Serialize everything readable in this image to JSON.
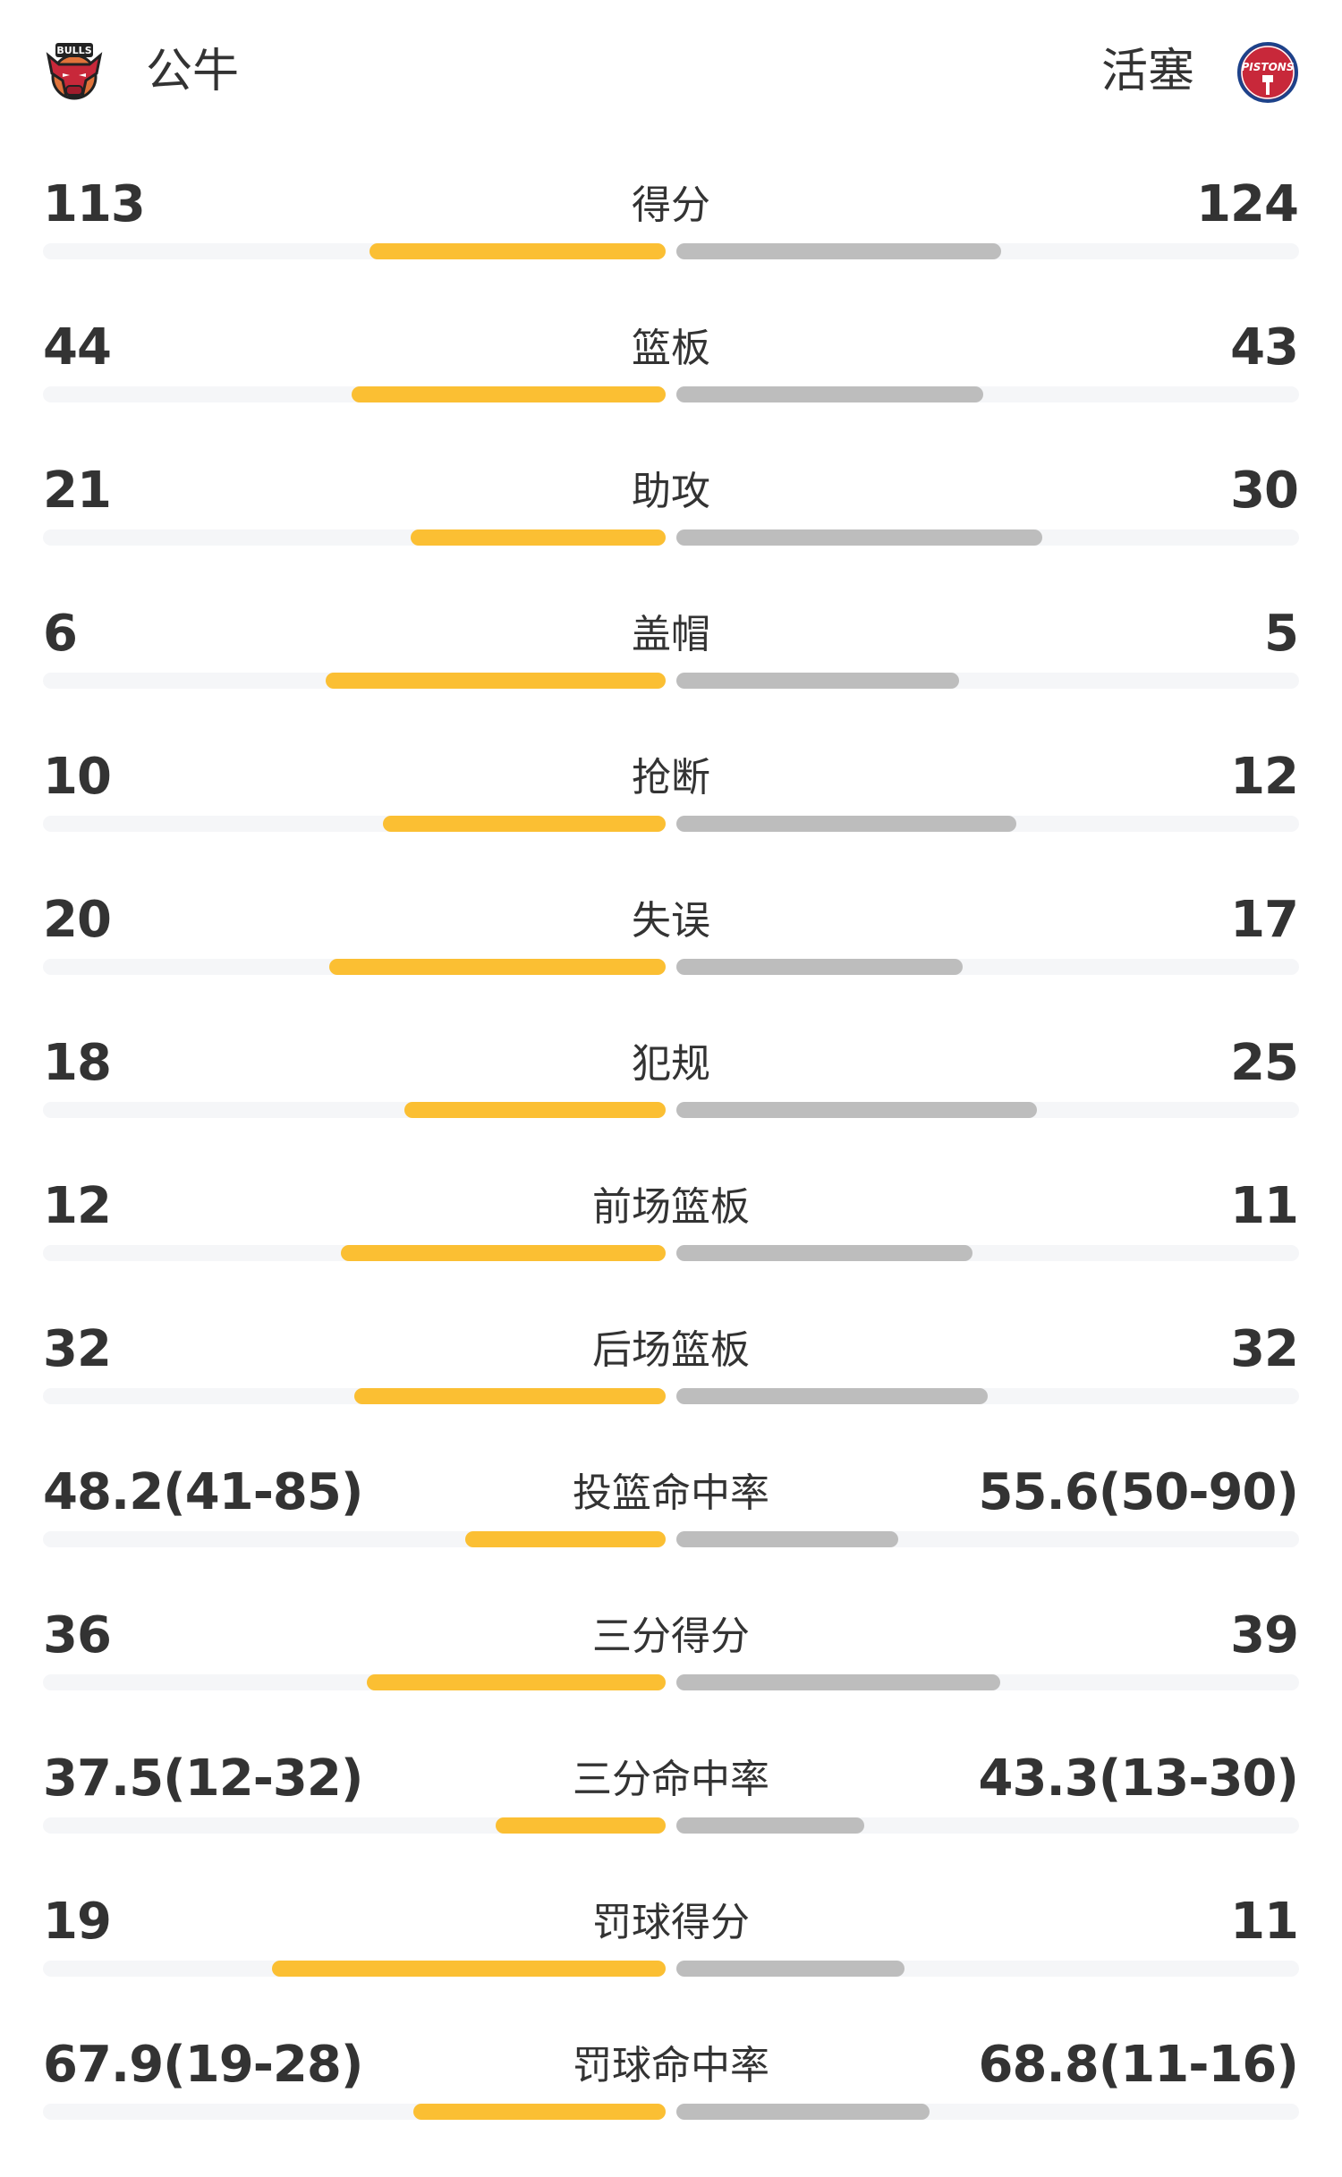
{
  "colors": {
    "home_bar": "#fbbf33",
    "away_bar": "#bdbdbd",
    "track": "#f5f6f8",
    "text": "#333333"
  },
  "header": {
    "home": {
      "name": "公牛",
      "logo_text": "BULLS",
      "logo": "bulls-logo"
    },
    "away": {
      "name": "活塞",
      "logo_text": "PISTONS",
      "logo": "pistons-logo"
    }
  },
  "stats": [
    {
      "label": "得分",
      "home": "113",
      "away": "124",
      "home_fill": 0.476,
      "away_fill": 0.522
    },
    {
      "label": "篮板",
      "home": "44",
      "away": "43",
      "home_fill": 0.504,
      "away_fill": 0.493
    },
    {
      "label": "助攻",
      "home": "21",
      "away": "30",
      "home_fill": 0.41,
      "away_fill": 0.588
    },
    {
      "label": "盖帽",
      "home": "6",
      "away": "5",
      "home_fill": 0.546,
      "away_fill": 0.454
    },
    {
      "label": "抢断",
      "home": "10",
      "away": "12",
      "home_fill": 0.454,
      "away_fill": 0.546
    },
    {
      "label": "失误",
      "home": "20",
      "away": "17",
      "home_fill": 0.54,
      "away_fill": 0.46
    },
    {
      "label": "犯规",
      "home": "18",
      "away": "25",
      "home_fill": 0.419,
      "away_fill": 0.579
    },
    {
      "label": "前场篮板",
      "home": "12",
      "away": "11",
      "home_fill": 0.522,
      "away_fill": 0.476
    },
    {
      "label": "后场篮板",
      "home": "32",
      "away": "32",
      "home_fill": 0.5,
      "away_fill": 0.5
    },
    {
      "label": "投篮命中率",
      "home": "48.2(41-85)",
      "away": "55.6(50-90)",
      "home_fill": 0.322,
      "away_fill": 0.357
    },
    {
      "label": "三分得分",
      "home": "36",
      "away": "39",
      "home_fill": 0.48,
      "away_fill": 0.52
    },
    {
      "label": "三分命中率",
      "home": "37.5(12-32)",
      "away": "43.3(13-30)",
      "home_fill": 0.273,
      "away_fill": 0.302
    },
    {
      "label": "罚球得分",
      "home": "19",
      "away": "11",
      "home_fill": 0.632,
      "away_fill": 0.366
    },
    {
      "label": "罚球命中率",
      "home": "67.9(19-28)",
      "away": "68.8(11-16)",
      "home_fill": 0.405,
      "away_fill": 0.407
    }
  ]
}
